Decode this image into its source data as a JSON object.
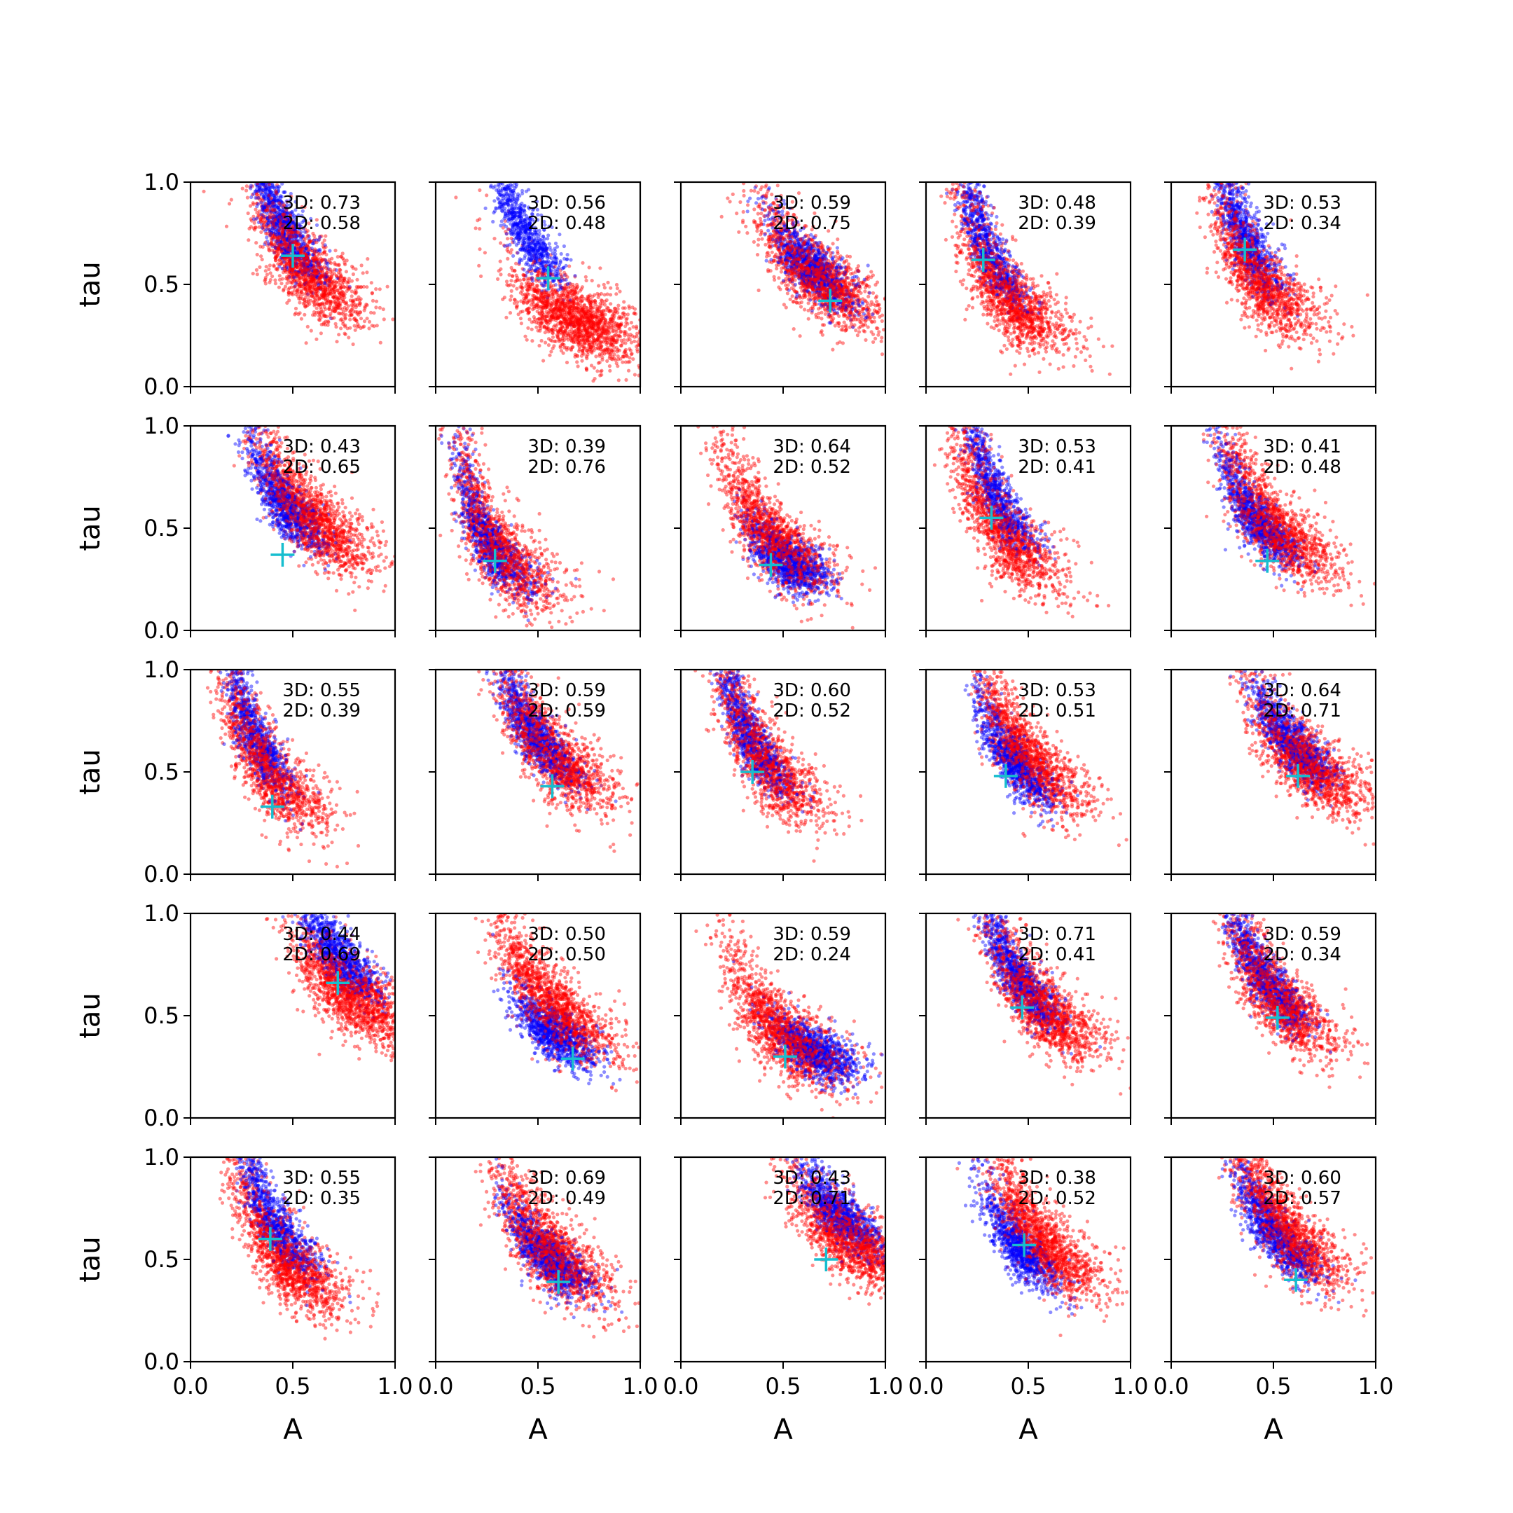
{
  "colors": {
    "series_3d": "#0000ff",
    "series_2d": "#ff0000",
    "truth_marker": "#17becf",
    "axes": "#000000",
    "background": "#ffffff"
  },
  "chart_data": {
    "type": "scatter",
    "layout": "5x5 grid of small-multiple scatter panels",
    "xlabel": "A",
    "ylabel": "tau",
    "xlim": [
      0,
      1
    ],
    "ylim": [
      0,
      1
    ],
    "xticks": [
      "0.0",
      "0.5",
      "1.0"
    ],
    "yticks": [
      "0.0",
      "0.5",
      "1.0"
    ],
    "grid": false,
    "legend": "none",
    "series": [
      {
        "color": "blue",
        "marker": "dots",
        "key": "3D"
      },
      {
        "color": "red",
        "marker": "dots",
        "key": "2D"
      }
    ],
    "truth_marker": "cyan plus",
    "panels": [
      {
        "label_3d": "3D: 0.73",
        "label_2d": "2D: 0.58",
        "truth": [
          0.5,
          0.64
        ],
        "c3d": [
          0.44,
          0.8
        ],
        "c2d": [
          0.55,
          0.58
        ]
      },
      {
        "label_3d": "3D: 0.56",
        "label_2d": "2D: 0.48",
        "truth": [
          0.55,
          0.53
        ],
        "c3d": [
          0.42,
          0.78
        ],
        "c2d": [
          0.68,
          0.33
        ]
      },
      {
        "label_3d": "3D: 0.59",
        "label_2d": "2D: 0.75",
        "truth": [
          0.73,
          0.42
        ],
        "c3d": [
          0.64,
          0.58
        ],
        "c2d": [
          0.66,
          0.53
        ]
      },
      {
        "label_3d": "3D: 0.48",
        "label_2d": "2D: 0.39",
        "truth": [
          0.28,
          0.62
        ],
        "c3d": [
          0.27,
          0.75
        ],
        "c2d": [
          0.38,
          0.45
        ]
      },
      {
        "label_3d": "3D: 0.53",
        "label_2d": "2D: 0.34",
        "truth": [
          0.36,
          0.67
        ],
        "c3d": [
          0.33,
          0.8
        ],
        "c2d": [
          0.4,
          0.55
        ]
      },
      {
        "label_3d": "3D: 0.43",
        "label_2d": "2D: 0.65",
        "truth": [
          0.45,
          0.37
        ],
        "c3d": [
          0.45,
          0.62
        ],
        "c2d": [
          0.58,
          0.55
        ]
      },
      {
        "label_3d": "3D: 0.39",
        "label_2d": "2D: 0.76",
        "truth": [
          0.29,
          0.34
        ],
        "c3d": [
          0.24,
          0.45
        ],
        "c2d": [
          0.28,
          0.42
        ]
      },
      {
        "label_3d": "3D: 0.64",
        "label_2d": "2D: 0.52",
        "truth": [
          0.44,
          0.32
        ],
        "c3d": [
          0.52,
          0.33
        ],
        "c2d": [
          0.44,
          0.45
        ]
      },
      {
        "label_3d": "3D: 0.53",
        "label_2d": "2D: 0.41",
        "truth": [
          0.32,
          0.55
        ],
        "c3d": [
          0.32,
          0.7
        ],
        "c2d": [
          0.35,
          0.5
        ]
      },
      {
        "label_3d": "3D: 0.41",
        "label_2d": "2D: 0.48",
        "truth": [
          0.47,
          0.34
        ],
        "c3d": [
          0.4,
          0.55
        ],
        "c2d": [
          0.48,
          0.52
        ]
      },
      {
        "label_3d": "3D: 0.55",
        "label_2d": "2D: 0.39",
        "truth": [
          0.4,
          0.33
        ],
        "c3d": [
          0.28,
          0.75
        ],
        "c2d": [
          0.34,
          0.55
        ]
      },
      {
        "label_3d": "3D: 0.59",
        "label_2d": "2D: 0.59",
        "truth": [
          0.57,
          0.43
        ],
        "c3d": [
          0.48,
          0.68
        ],
        "c2d": [
          0.55,
          0.6
        ]
      },
      {
        "label_3d": "3D: 0.60",
        "label_2d": "2D: 0.52",
        "truth": [
          0.35,
          0.5
        ],
        "c3d": [
          0.32,
          0.7
        ],
        "c2d": [
          0.38,
          0.58
        ]
      },
      {
        "label_3d": "3D: 0.53",
        "label_2d": "2D: 0.51",
        "truth": [
          0.39,
          0.48
        ],
        "c3d": [
          0.42,
          0.55
        ],
        "c2d": [
          0.47,
          0.6
        ]
      },
      {
        "label_3d": "3D: 0.64",
        "label_2d": "2D: 0.71",
        "truth": [
          0.62,
          0.48
        ],
        "c3d": [
          0.58,
          0.65
        ],
        "c2d": [
          0.65,
          0.55
        ]
      },
      {
        "label_3d": "3D: 0.44",
        "label_2d": "2D: 0.69",
        "truth": [
          0.72,
          0.66
        ],
        "c3d": [
          0.72,
          0.8
        ],
        "c2d": [
          0.78,
          0.6
        ]
      },
      {
        "label_3d": "3D: 0.50",
        "label_2d": "2D: 0.50",
        "truth": [
          0.67,
          0.29
        ],
        "c3d": [
          0.58,
          0.4
        ],
        "c2d": [
          0.56,
          0.55
        ]
      },
      {
        "label_3d": "3D: 0.59",
        "label_2d": "2D: 0.24",
        "truth": [
          0.51,
          0.3
        ],
        "c3d": [
          0.66,
          0.32
        ],
        "c2d": [
          0.5,
          0.4
        ]
      },
      {
        "label_3d": "3D: 0.71",
        "label_2d": "2D: 0.41",
        "truth": [
          0.47,
          0.54
        ],
        "c3d": [
          0.44,
          0.7
        ],
        "c2d": [
          0.55,
          0.55
        ]
      },
      {
        "label_3d": "3D: 0.59",
        "label_2d": "2D: 0.34",
        "truth": [
          0.52,
          0.49
        ],
        "c3d": [
          0.44,
          0.7
        ],
        "c2d": [
          0.5,
          0.6
        ]
      },
      {
        "label_3d": "3D: 0.55",
        "label_2d": "2D: 0.35",
        "truth": [
          0.39,
          0.6
        ],
        "c3d": [
          0.4,
          0.7
        ],
        "c2d": [
          0.45,
          0.5
        ]
      },
      {
        "label_3d": "3D: 0.69",
        "label_2d": "2D: 0.49",
        "truth": [
          0.6,
          0.39
        ],
        "c3d": [
          0.55,
          0.5
        ],
        "c2d": [
          0.55,
          0.55
        ]
      },
      {
        "label_3d": "3D: 0.43",
        "label_2d": "2D: 0.71",
        "truth": [
          0.71,
          0.5
        ],
        "c3d": [
          0.78,
          0.72
        ],
        "c2d": [
          0.82,
          0.6
        ]
      },
      {
        "label_3d": "3D: 0.38",
        "label_2d": "2D: 0.52",
        "truth": [
          0.48,
          0.57
        ],
        "c3d": [
          0.45,
          0.55
        ],
        "c2d": [
          0.55,
          0.6
        ]
      },
      {
        "label_3d": "3D: 0.60",
        "label_2d": "2D: 0.57",
        "truth": [
          0.61,
          0.4
        ],
        "c3d": [
          0.5,
          0.62
        ],
        "c2d": [
          0.55,
          0.65
        ]
      }
    ]
  }
}
